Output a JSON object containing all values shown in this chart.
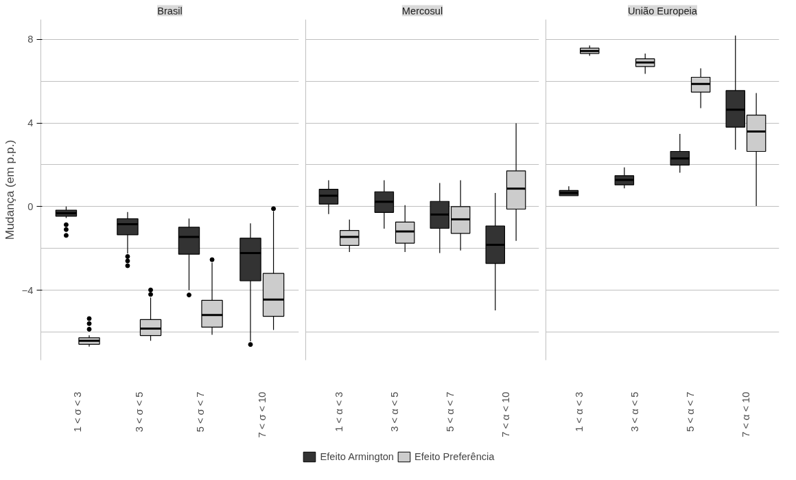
{
  "chart_data": [
    {
      "type": "box",
      "title": "Brasil",
      "ylabel": "Mudança (em p.p.)",
      "categories": [
        "1 < σ < 3",
        "3 < σ < 5",
        "5 < σ < 7",
        "7 < σ < 10"
      ],
      "ylim": [
        -7.35,
        8.95
      ],
      "yticks": [
        {
          "value": -6,
          "label": null
        },
        -4,
        {
          "value": -2,
          "label": null
        },
        0,
        {
          "value": 2,
          "label": null
        },
        4,
        {
          "value": 6,
          "label": null
        },
        8
      ],
      "grid": "y",
      "legend": "bottom",
      "series": [
        {
          "name": "Efeito Armington",
          "color": "#333333",
          "boxes": [
            {
              "low": -0.55,
              "q1": -0.46,
              "median": -0.32,
              "q3": -0.17,
              "high": 0,
              "outliers": [
                -0.87,
                -1.1,
                -1.38
              ]
            },
            {
              "low": -2.25,
              "q1": -1.35,
              "median": -0.84,
              "q3": -0.58,
              "high": -0.26,
              "outliers": [
                -2.39,
                -2.6,
                -2.83
              ]
            },
            {
              "low": -4.0,
              "q1": -2.28,
              "median": -1.45,
              "q3": -0.99,
              "high": -0.57,
              "outliers": [
                -4.23
              ]
            },
            {
              "low": -6.45,
              "q1": -3.55,
              "median": -2.22,
              "q3": -1.51,
              "high": -0.8,
              "outliers": [
                -6.6
              ]
            }
          ]
        },
        {
          "name": "Efeito Preferência",
          "color": "#cccccc",
          "boxes": [
            {
              "low": -6.7,
              "q1": -6.59,
              "median": -6.42,
              "q3": -6.28,
              "high": -6.16,
              "outliers": [
                -5.36,
                -5.6,
                -5.87
              ]
            },
            {
              "low": -6.42,
              "q1": -6.17,
              "median": -5.84,
              "q3": -5.41,
              "high": -4.35,
              "outliers": [
                -3.99,
                -4.2
              ]
            },
            {
              "low": -6.13,
              "q1": -5.77,
              "median": -5.19,
              "q3": -4.49,
              "high": -2.68,
              "outliers": [
                -2.54
              ]
            },
            {
              "low": -5.9,
              "q1": -5.25,
              "median": -4.45,
              "q3": -3.2,
              "high": -0.22,
              "outliers": [
                -0.1
              ]
            }
          ]
        }
      ]
    },
    {
      "type": "box",
      "title": "Mercosul",
      "categories": [
        "1 < α < 3",
        "3 < α < 5",
        "5 < α < 7",
        "7 < α < 10"
      ],
      "ylim": [
        -7.35,
        8.95
      ],
      "yticks": [
        {
          "value": -6,
          "label": null
        },
        -4,
        {
          "value": -2,
          "label": null
        },
        0,
        {
          "value": 2,
          "label": null
        },
        4,
        {
          "value": 6,
          "label": null
        },
        8
      ],
      "grid": "y",
      "tick_labels": "x",
      "series": [
        {
          "color": "#333333",
          "boxes": [
            {
              "low": -0.36,
              "q1": 0.12,
              "median": 0.52,
              "q3": 0.83,
              "high": 1.26
            },
            {
              "low": -1.06,
              "q1": -0.28,
              "median": 0.23,
              "q3": 0.71,
              "high": 1.26
            },
            {
              "low": -2.22,
              "q1": -1.04,
              "median": -0.38,
              "q3": 0.25,
              "high": 1.13
            },
            {
              "low": -4.97,
              "q1": -2.72,
              "median": -1.83,
              "q3": -0.93,
              "high": 0.65
            }
          ]
        },
        {
          "color": "#cccccc",
          "boxes": [
            {
              "low": -2.17,
              "q1": -1.86,
              "median": -1.45,
              "q3": -1.14,
              "high": -0.62
            },
            {
              "low": -2.17,
              "q1": -1.75,
              "median": -1.19,
              "q3": -0.74,
              "high": 0.07
            },
            {
              "low": -2.1,
              "q1": -1.28,
              "median": -0.61,
              "q3": 0,
              "high": 1.26
            },
            {
              "low": -1.64,
              "q1": -0.12,
              "median": 0.86,
              "q3": 1.71,
              "high": 3.99
            }
          ]
        }
      ]
    },
    {
      "type": "box",
      "title": "União Europeia",
      "categories": [
        "1 < α < 3",
        "3 < α < 5",
        "5 < α < 7",
        "7 < α < 10"
      ],
      "ylim": [
        -7.35,
        8.95
      ],
      "yticks": [
        {
          "value": -6,
          "label": null
        },
        -4,
        {
          "value": -2,
          "label": null
        },
        0,
        {
          "value": 2,
          "label": null
        },
        4,
        {
          "value": 6,
          "label": null
        },
        8
      ],
      "grid": "y",
      "tick_labels": "x",
      "series": [
        {
          "color": "#333333",
          "boxes": [
            {
              "low": 0.52,
              "q1": 0.52,
              "median": 0.65,
              "q3": 0.77,
              "high": 0.97
            },
            {
              "low": 0.87,
              "q1": 1.04,
              "median": 1.28,
              "q3": 1.48,
              "high": 1.88
            },
            {
              "low": 1.62,
              "q1": 1.99,
              "median": 2.3,
              "q3": 2.64,
              "high": 3.48
            },
            {
              "low": 2.72,
              "q1": 3.8,
              "median": 4.64,
              "q3": 5.55,
              "high": 8.19
            }
          ]
        },
        {
          "color": "#cccccc",
          "boxes": [
            {
              "low": 7.22,
              "q1": 7.33,
              "median": 7.45,
              "q3": 7.58,
              "high": 7.71
            },
            {
              "low": 6.35,
              "q1": 6.7,
              "median": 6.9,
              "q3": 7.07,
              "high": 7.32
            },
            {
              "low": 4.71,
              "q1": 5.48,
              "median": 5.87,
              "q3": 6.19,
              "high": 6.62
            },
            {
              "low": 0.03,
              "q1": 2.64,
              "median": 3.59,
              "q3": 4.38,
              "high": 5.43
            }
          ]
        }
      ]
    }
  ]
}
